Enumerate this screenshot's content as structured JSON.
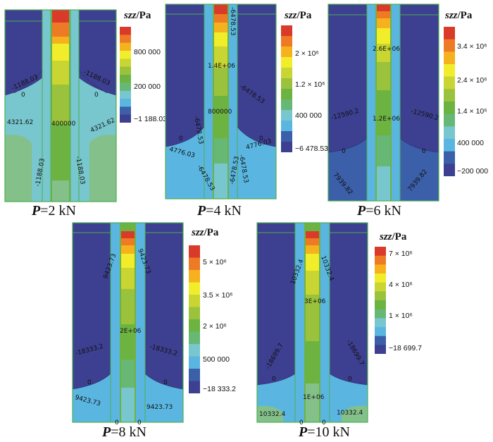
{
  "panels": [
    {
      "id": "p2",
      "caption_prefix": "P",
      "caption_suffix": "=2 kN",
      "scale_title_var": "szz",
      "scale_title_unit": "/Pa",
      "colorbar_colors": [
        "#d93a2a",
        "#ee7a25",
        "#f6b21e",
        "#f1ed2a",
        "#c8d533",
        "#9bc23c",
        "#6db342",
        "#67b874",
        "#78c6ce",
        "#5ab6e1",
        "#3b5fa8",
        "#3d3f90"
      ],
      "colorbar_ticks": [
        "800 000",
        "200 000",
        "−1 188.03"
      ],
      "contour_labels": [
        "-1188.03",
        "0",
        "-1188.03",
        "0",
        "400000",
        "4321.62",
        "4321.62",
        "-1188.03",
        "-1188.03"
      ]
    },
    {
      "id": "p4",
      "caption_prefix": "P",
      "caption_suffix": "=4 kN",
      "scale_title_var": "szz",
      "scale_title_unit": "/Pa",
      "colorbar_colors": [
        "#d93a2a",
        "#ee7a25",
        "#f6b21e",
        "#f1ed2a",
        "#c8d533",
        "#9bc23c",
        "#6db342",
        "#67b874",
        "#78c6ce",
        "#5ab6e1",
        "#3b5fa8",
        "#3d3f90"
      ],
      "colorbar_ticks": [
        "2 × 10⁶",
        "1.2 × 10⁶",
        "400 000",
        "−6 478.53"
      ],
      "contour_labels": [
        "-6478.53",
        "1.4E+06",
        "-6478.53",
        "800000",
        "-6478.53",
        "-6478.53",
        "0",
        "0",
        "4776.03",
        "4776.03",
        "-6478.53",
        "-6478.53"
      ]
    },
    {
      "id": "p6",
      "caption_prefix": "P",
      "caption_suffix": "=6 kN",
      "scale_title_var": "szz",
      "scale_title_unit": "/Pa",
      "colorbar_colors": [
        "#d93a2a",
        "#ee7a25",
        "#f6b21e",
        "#f1ed2a",
        "#c8d533",
        "#9bc23c",
        "#6db342",
        "#67b874",
        "#78c6ce",
        "#5ab6e1",
        "#3b5fa8",
        "#3d3f90"
      ],
      "colorbar_ticks": [
        "3.4 × 10⁶",
        "2.4 × 10⁶",
        "1.4 × 10⁶",
        "400 000",
        "−200 000"
      ],
      "contour_labels": [
        "2.6E+06",
        "-12590.2",
        "-12590.2",
        "1.2E+06",
        "0",
        "0",
        "7939.82",
        "7939.82"
      ]
    },
    {
      "id": "p8",
      "caption_prefix": "P",
      "caption_suffix": "=8 kN",
      "scale_title_var": "szz",
      "scale_title_unit": "/Pa",
      "colorbar_colors": [
        "#d93a2a",
        "#ee7a25",
        "#f6b21e",
        "#f1ed2a",
        "#c8d533",
        "#9bc23c",
        "#6db342",
        "#67b874",
        "#78c6ce",
        "#5ab6e1",
        "#3b5fa8",
        "#3d3f90"
      ],
      "colorbar_ticks": [
        "5 × 10⁶",
        "3.5 × 10⁶",
        "2 × 10⁶",
        "500 000",
        "−18 333.2"
      ],
      "contour_labels": [
        "9423.73",
        "9423.73",
        "2E+06",
        "-18333.2",
        "-18333.2",
        "0",
        "0",
        "9423.73",
        "9423.73",
        "0",
        "0"
      ]
    },
    {
      "id": "p10",
      "caption_prefix": "P",
      "caption_suffix": "=10 kN",
      "scale_title_var": "szz",
      "scale_title_unit": "/Pa",
      "colorbar_colors": [
        "#d93a2a",
        "#ee7a25",
        "#f6b21e",
        "#f1ed2a",
        "#c8d533",
        "#9bc23c",
        "#6db342",
        "#67b874",
        "#78c6ce",
        "#5ab6e1",
        "#3b5fa8",
        "#3d3f90"
      ],
      "colorbar_ticks": [
        "7 × 10⁶",
        "4 × 10⁶",
        "1 × 10⁶",
        "−18 699.7"
      ],
      "contour_labels": [
        "10332.4",
        "10332.4",
        "3E+06",
        "-18699.7",
        "-18699.7",
        "0",
        "0",
        "1E+06",
        "10332.4",
        "10332.4",
        "0",
        "0"
      ]
    }
  ],
  "colors": {
    "dark_blue": "#3d3f90",
    "mid_blue": "#3b5fa8",
    "light_blue": "#5ab6e1",
    "cyan": "#78c6ce",
    "teal_green": "#67b874",
    "green": "#6db342",
    "pale_green": "#83c08a",
    "outline_green": "#4caf50"
  }
}
